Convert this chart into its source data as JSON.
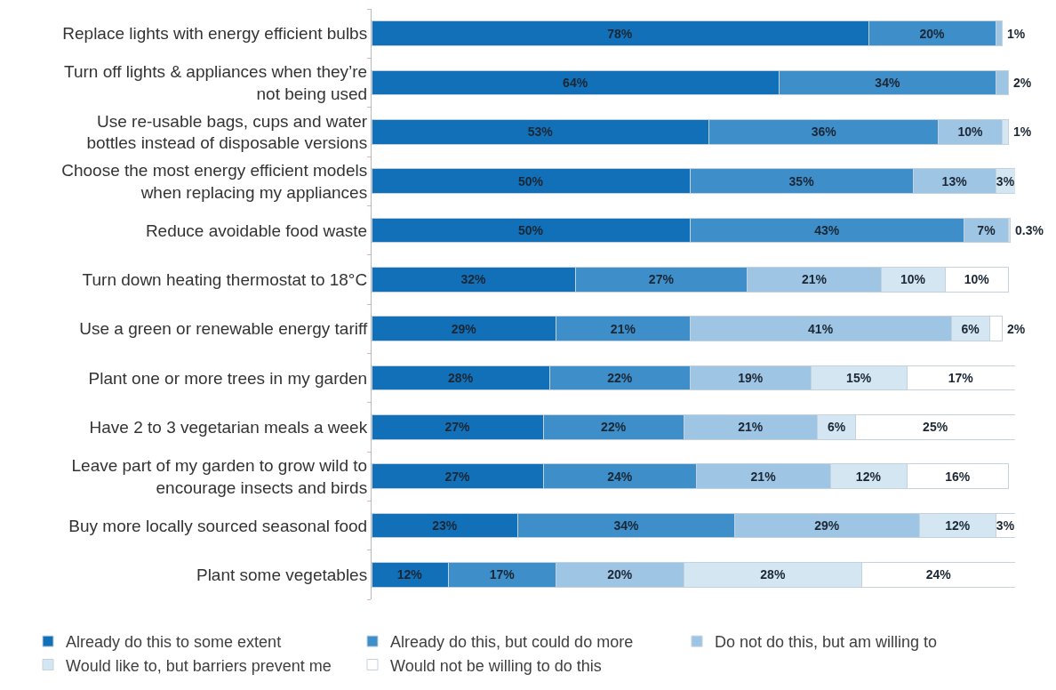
{
  "chart_data": {
    "type": "bar",
    "orientation": "horizontal",
    "stacked": true,
    "categories": [
      "Replace lights with energy efficient bulbs",
      "Turn off lights & appliances when they’re\nnot being used",
      "Use re-usable bags, cups and water\nbottles instead of disposable versions",
      "Choose the most energy efficient models\nwhen replacing my appliances",
      "Reduce avoidable food waste",
      "Turn down heating thermostat to 18°C",
      "Use a green or renewable energy tariff",
      "Plant one or more trees in my garden",
      "Have 2 to 3 vegetarian meals a week",
      "Leave part of my garden to grow wild to\nencourage insects and birds",
      "Buy more locally sourced seasonal food",
      "Plant some vegetables"
    ],
    "series": [
      {
        "name": "Already do this to some extent",
        "color": "#1170b8",
        "values": [
          78,
          64,
          53,
          50,
          50,
          32,
          29,
          28,
          27,
          27,
          23,
          12
        ],
        "value_labels": [
          "78%",
          "64%",
          "53%",
          "50%",
          "50%",
          "32%",
          "29%",
          "28%",
          "27%",
          "27%",
          "23%",
          "12%"
        ]
      },
      {
        "name": "Already do this, but could do more",
        "color": "#3d8ec9",
        "values": [
          20,
          34,
          36,
          35,
          43,
          27,
          21,
          22,
          22,
          24,
          34,
          17
        ],
        "value_labels": [
          "20%",
          "34%",
          "36%",
          "35%",
          "43%",
          "27%",
          "21%",
          "22%",
          "22%",
          "24%",
          "34%",
          "17%"
        ]
      },
      {
        "name": "Do not do this, but am willing to",
        "color": "#9fc5e4",
        "values": [
          1,
          2,
          10,
          13,
          7,
          21,
          41,
          19,
          21,
          21,
          29,
          20
        ],
        "value_labels": [
          "1%",
          "2%",
          "10%",
          "13%",
          "7%",
          "21%",
          "41%",
          "19%",
          "21%",
          "21%",
          "29%",
          "20%"
        ]
      },
      {
        "name": "Would like to, but barriers prevent me",
        "color": "#d5e6f3",
        "values": [
          null,
          null,
          1,
          3,
          0.3,
          10,
          6,
          15,
          6,
          12,
          12,
          28
        ],
        "value_labels": [
          null,
          null,
          "1%",
          "3%",
          "0.3%",
          "10%",
          "6%",
          "15%",
          "6%",
          "12%",
          "12%",
          "28%"
        ]
      },
      {
        "name": "Would not be willing to do this",
        "color": "#ffffff",
        "values": [
          null,
          null,
          null,
          null,
          null,
          10,
          2,
          17,
          25,
          16,
          3,
          24
        ],
        "value_labels": [
          null,
          null,
          null,
          null,
          null,
          "10%",
          "2%",
          "17%",
          "25%",
          "16%",
          "3%",
          "24%"
        ]
      }
    ],
    "xlim": [
      0,
      101
    ],
    "legend": "bottom",
    "tick_labels": "y"
  }
}
